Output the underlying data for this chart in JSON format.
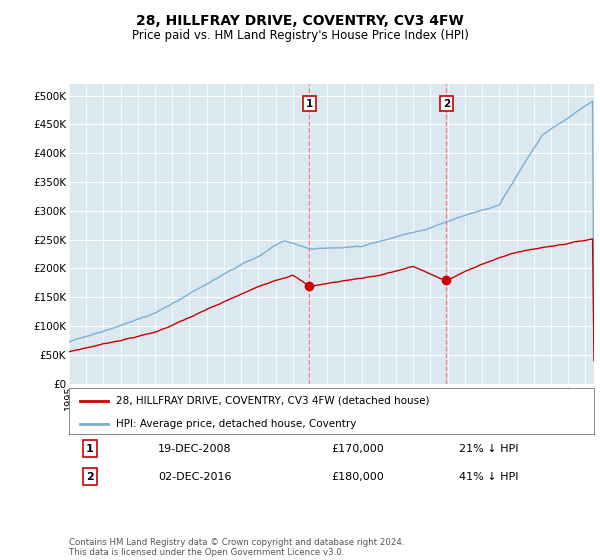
{
  "title": "28, HILLFRAY DRIVE, COVENTRY, CV3 4FW",
  "subtitle": "Price paid vs. HM Land Registry's House Price Index (HPI)",
  "ylabel_ticks": [
    0,
    50000,
    100000,
    150000,
    200000,
    250000,
    300000,
    350000,
    400000,
    450000,
    500000
  ],
  "sale1_date_num": 2008.97,
  "sale1_price": 170000,
  "sale1_label": "1",
  "sale1_text": "19-DEC-2008",
  "sale1_amount": "£170,000",
  "sale1_pct": "21% ↓ HPI",
  "sale2_date_num": 2016.92,
  "sale2_price": 180000,
  "sale2_label": "2",
  "sale2_text": "02-DEC-2016",
  "sale2_amount": "£180,000",
  "sale2_pct": "41% ↓ HPI",
  "legend_line1": "28, HILLFRAY DRIVE, COVENTRY, CV3 4FW (detached house)",
  "legend_line2": "HPI: Average price, detached house, Coventry",
  "footer": "Contains HM Land Registry data © Crown copyright and database right 2024.\nThis data is licensed under the Open Government Licence v3.0.",
  "line_color_property": "#cc0000",
  "line_color_hpi": "#7bafd4",
  "background_color": "#dce8f0",
  "xlim_start": 1995,
  "xlim_end": 2025.5,
  "ylim_min": 0,
  "ylim_max": 520000
}
